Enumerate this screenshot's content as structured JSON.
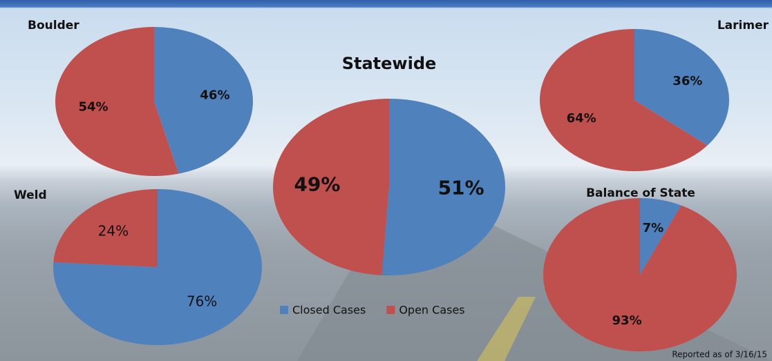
{
  "chart_data": [
    {
      "type": "pie",
      "title": "Statewide",
      "categories": [
        "Closed Cases",
        "Open Cases"
      ],
      "values": [
        51,
        49
      ],
      "value_labels": [
        "51%",
        "49%"
      ],
      "colors": [
        "#4f81bd",
        "#c0504d"
      ]
    },
    {
      "type": "pie",
      "title": "Boulder",
      "values": [
        46,
        54
      ],
      "value_labels": [
        "46%",
        "54%"
      ],
      "colors": [
        "#4f81bd",
        "#c0504d"
      ]
    },
    {
      "type": "pie",
      "title": "Larimer",
      "values": [
        36,
        64
      ],
      "value_labels": [
        "36%",
        "64%"
      ],
      "colors": [
        "#4f81bd",
        "#c0504d"
      ]
    },
    {
      "type": "pie",
      "title": "Weld",
      "values": [
        76,
        24
      ],
      "value_labels": [
        "76%",
        "24%"
      ],
      "colors": [
        "#4f81bd",
        "#c0504d"
      ]
    },
    {
      "type": "pie",
      "title": "Balance of State",
      "values": [
        7,
        93
      ],
      "value_labels": [
        "7%",
        "93%"
      ],
      "colors": [
        "#4f81bd",
        "#c0504d"
      ]
    }
  ],
  "footnote": "Reported as of 3/16/15"
}
